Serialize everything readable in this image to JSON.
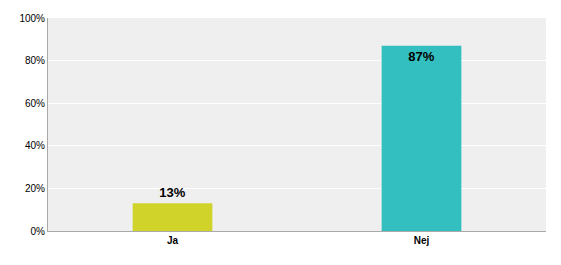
{
  "chart_data": {
    "type": "bar",
    "categories": [
      "Ja",
      "Nej"
    ],
    "values": [
      13,
      87
    ],
    "value_labels": [
      "13%",
      "87%"
    ],
    "colors": [
      "#d0d42a",
      "#33bfbf"
    ],
    "ylim": [
      0,
      100
    ],
    "yticks": [
      {
        "value": 0,
        "label": "0%"
      },
      {
        "value": 20,
        "label": "20%"
      },
      {
        "value": 40,
        "label": "40%"
      },
      {
        "value": 60,
        "label": "60%"
      },
      {
        "value": 80,
        "label": "80%"
      },
      {
        "value": 100,
        "label": "100%"
      }
    ],
    "grid": true,
    "data_labels": true
  }
}
